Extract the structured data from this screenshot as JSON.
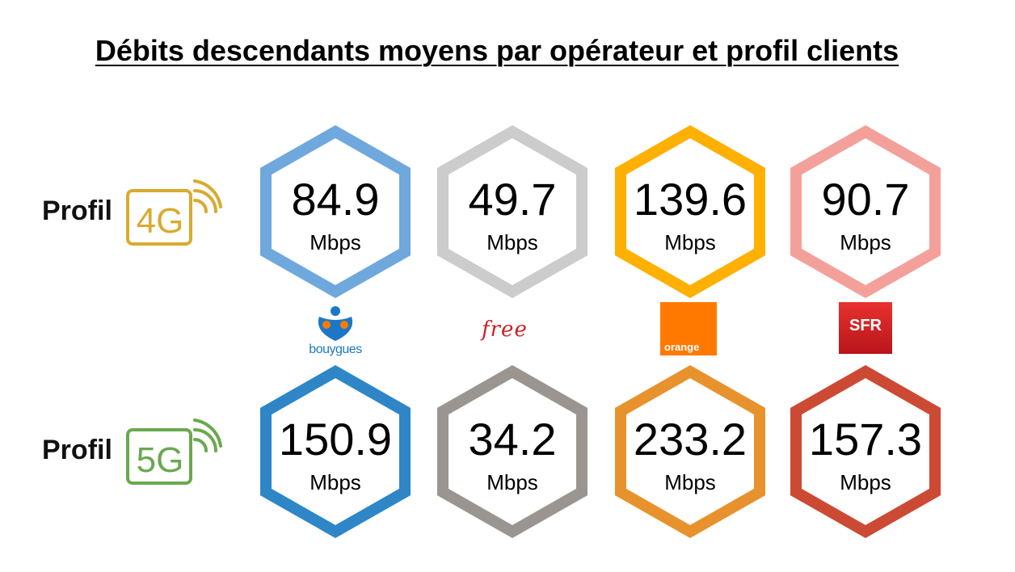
{
  "title": "Débits descendants moyens par opérateur et profil clients",
  "rows": [
    {
      "label": "Profil",
      "badge": "4G",
      "badge_color": "#d9aa2e",
      "values": [
        {
          "operator": "bouygues",
          "value": "84.9",
          "unit": "Mbps",
          "color": "#6fa8dc"
        },
        {
          "operator": "free",
          "value": "49.7",
          "unit": "Mbps",
          "color": "#cccccc"
        },
        {
          "operator": "orange",
          "value": "139.6",
          "unit": "Mbps",
          "color": "#ffb000"
        },
        {
          "operator": "sfr",
          "value": "90.7",
          "unit": "Mbps",
          "color": "#f4a09a"
        }
      ]
    },
    {
      "label": "Profil",
      "badge": "5G",
      "badge_color": "#6aa84f",
      "values": [
        {
          "operator": "bouygues",
          "value": "150.9",
          "unit": "Mbps",
          "color": "#2e86c6"
        },
        {
          "operator": "free",
          "value": "34.2",
          "unit": "Mbps",
          "color": "#9a9590"
        },
        {
          "operator": "orange",
          "value": "233.2",
          "unit": "Mbps",
          "color": "#e8922e"
        },
        {
          "operator": "sfr",
          "value": "157.3",
          "unit": "Mbps",
          "color": "#cc4a34"
        }
      ]
    }
  ],
  "operators": [
    {
      "id": "bouygues",
      "logo_text": "bouygues"
    },
    {
      "id": "free",
      "logo_text": "free"
    },
    {
      "id": "orange",
      "logo_text": "orange"
    },
    {
      "id": "sfr",
      "logo_text": "SFR"
    }
  ]
}
